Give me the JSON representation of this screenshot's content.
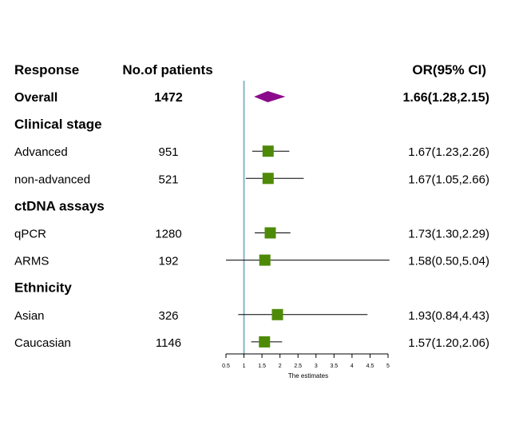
{
  "headers": {
    "response": "Response",
    "patients": "No.of patients",
    "or": "OR(95% CI)"
  },
  "chart_data": {
    "type": "forest",
    "xlabel": "The estimates",
    "xlim": [
      0.5,
      5
    ],
    "ticks": [
      "0.5",
      "1",
      "1.5",
      "2",
      "2.5",
      "3",
      "3.5",
      "4",
      "4.5",
      "5"
    ],
    "tick_values": [
      0.5,
      1,
      1.5,
      2,
      2.5,
      3,
      3.5,
      4,
      4.5,
      5
    ],
    "reference_line": 1,
    "colors": {
      "reference": "#8ab4c8",
      "box": "#4e8a08",
      "summary": "#8b0a8b"
    },
    "rows": [
      {
        "kind": "summary",
        "label": "Overall",
        "n": "1472",
        "ci_text": "1.66(1.28,2.15)",
        "or": 1.66,
        "lo": 1.28,
        "hi": 2.15
      },
      {
        "kind": "group",
        "label": "Clinical stage"
      },
      {
        "kind": "study",
        "label": "Advanced",
        "n": "951",
        "ci_text": "1.67(1.23,2.26)",
        "or": 1.67,
        "lo": 1.23,
        "hi": 2.26
      },
      {
        "kind": "study",
        "label": "non-advanced",
        "n": "521",
        "ci_text": "1.67(1.05,2.66)",
        "or": 1.67,
        "lo": 1.05,
        "hi": 2.66
      },
      {
        "kind": "group",
        "label": "ctDNA assays"
      },
      {
        "kind": "study",
        "label": "qPCR",
        "n": "1280",
        "ci_text": "1.73(1.30,2.29)",
        "or": 1.73,
        "lo": 1.3,
        "hi": 2.29
      },
      {
        "kind": "study",
        "label": "ARMS",
        "n": "192",
        "ci_text": "1.58(0.50,5.04)",
        "or": 1.58,
        "lo": 0.5,
        "hi": 5.04
      },
      {
        "kind": "group",
        "label": "Ethnicity"
      },
      {
        "kind": "study",
        "label": "Asian",
        "n": "326",
        "ci_text": "1.93(0.84,4.43)",
        "or": 1.93,
        "lo": 0.84,
        "hi": 4.43
      },
      {
        "kind": "study",
        "label": "Caucasian",
        "n": "1146",
        "ci_text": "1.57(1.20,2.06)",
        "or": 1.57,
        "lo": 1.2,
        "hi": 2.06
      }
    ]
  }
}
